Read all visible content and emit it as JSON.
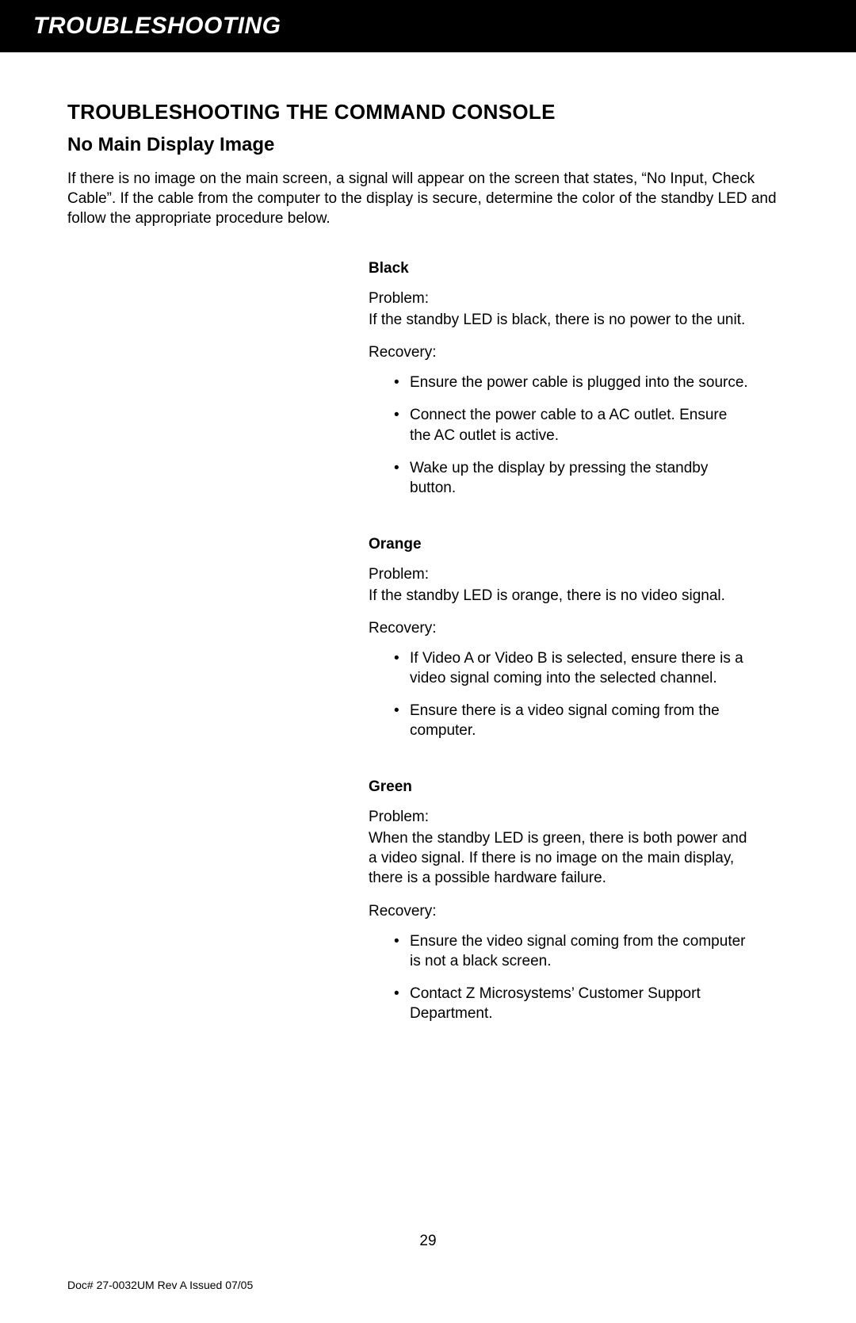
{
  "banner": {
    "title": "TROUBLESHOOTING"
  },
  "section": {
    "title": "TROUBLESHOOTING THE COMMAND CONSOLE",
    "subsection_title": "No Main Display Image",
    "intro": "If there is no image on the main screen, a signal will appear on the screen that states, “No Input, Check Cable”. If the cable from the computer to the display is secure, determine the color of the standby LED and follow the appropriate procedure below."
  },
  "labels": {
    "problem": "Problem:",
    "recovery": "Recovery:"
  },
  "led_states": {
    "black": {
      "heading": "Black",
      "problem": "If the standby LED is black, there is no power to the unit.",
      "recovery": [
        "Ensure the power cable is plugged into the source.",
        "Connect the power cable to a AC outlet. Ensure the AC outlet is active.",
        "Wake up the display by pressing the standby button."
      ]
    },
    "orange": {
      "heading": "Orange",
      "problem": "If the standby LED is orange, there is no video signal.",
      "recovery": [
        "If Video A or Video B is selected, ensure there is a video signal coming into the selected channel.",
        "Ensure there is a video signal coming from the computer."
      ]
    },
    "green": {
      "heading": "Green",
      "problem": "When the standby LED is green, there is both power and a video signal. If there is no image on the main display, there is a possible hardware failure.",
      "recovery": [
        "Ensure the video signal coming from the computer is not a black screen.",
        "Contact Z Microsystems’ Customer Support Department."
      ]
    }
  },
  "footer": {
    "page_number": "29",
    "doc_id": "Doc# 27-0032UM Rev A Issued 07/05"
  }
}
